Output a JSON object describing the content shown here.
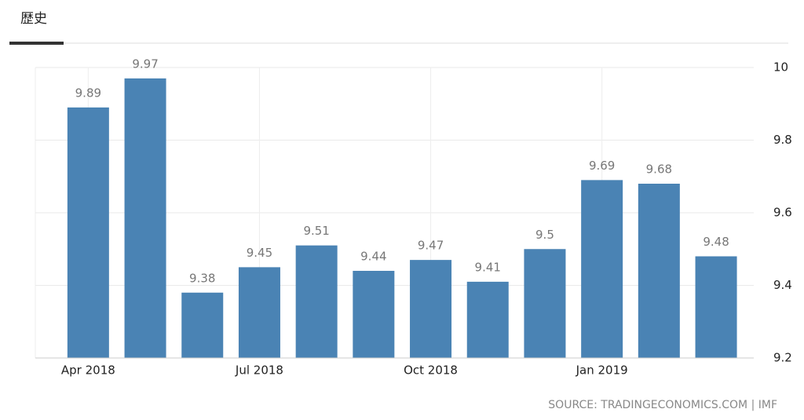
{
  "tab": "歴史",
  "chart_data": {
    "type": "bar",
    "categories": [
      "Apr 2018",
      null,
      null,
      "Jul 2018",
      null,
      null,
      "Oct 2018",
      null,
      null,
      "Jan 2019",
      null,
      null
    ],
    "values": [
      9.89,
      9.97,
      9.38,
      9.45,
      9.51,
      9.44,
      9.47,
      9.41,
      9.5,
      9.69,
      9.68,
      9.48
    ],
    "color": "#4a83b4",
    "ylim": [
      9.2,
      10
    ],
    "yticks": [
      9.2,
      9.4,
      9.6,
      9.8,
      10
    ],
    "grid": true,
    "source": "SOURCE: TRADINGECONOMICS.COM | IMF"
  }
}
